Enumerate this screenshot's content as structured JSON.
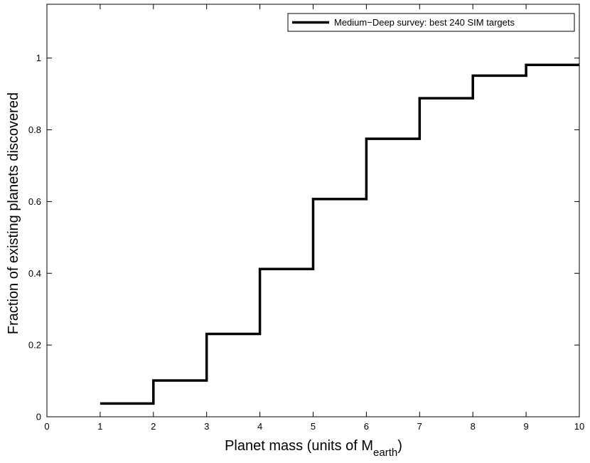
{
  "chart_data": {
    "type": "line",
    "step": "post",
    "x": [
      1,
      2,
      3,
      4,
      5,
      6,
      7,
      8,
      9,
      10
    ],
    "series": [
      {
        "name": "Medium−Deep survey: best 240 SIM targets",
        "values": [
          0.037,
          0.101,
          0.231,
          0.412,
          0.607,
          0.775,
          0.888,
          0.951,
          0.981,
          0.981
        ]
      }
    ],
    "xlim": [
      0,
      10
    ],
    "ylim": [
      0,
      1.15
    ],
    "xticks": [
      0,
      1,
      2,
      3,
      4,
      5,
      6,
      7,
      8,
      9,
      10
    ],
    "xtick_labels": [
      "0",
      "1",
      "2",
      "3",
      "4",
      "5",
      "6",
      "7",
      "8",
      "9",
      "10"
    ],
    "yticks": [
      0,
      0.2,
      0.4,
      0.6,
      0.8,
      1
    ],
    "ytick_labels": [
      "0",
      "0.2",
      "0.4",
      "0.6",
      "0.8",
      "1"
    ],
    "xlabel": "Planet mass (units of M",
    "xlabel_subscript": "earth",
    "xlabel_suffix": ")",
    "ylabel": "Fraction of existing planets discovered",
    "grid": false,
    "legend_position": "top-right",
    "line_color": "#000000"
  }
}
